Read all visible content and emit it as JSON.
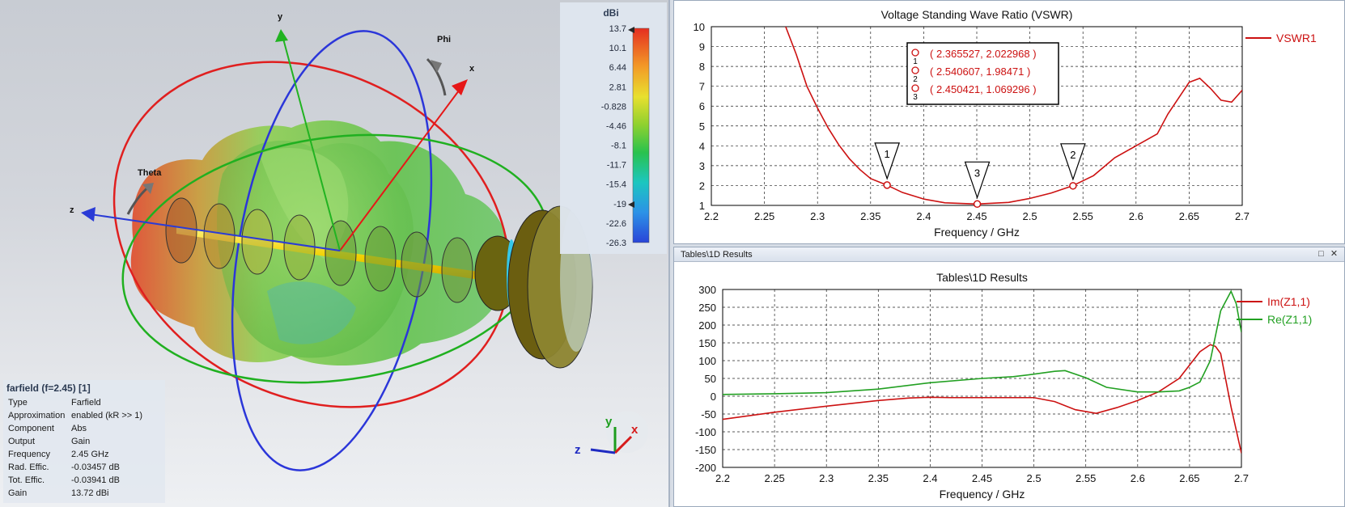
{
  "viewer": {
    "axis_labels": {
      "x": "x",
      "y": "y",
      "z": "z",
      "phi": "Phi",
      "theta": "Theta"
    },
    "triad": {
      "x": "x",
      "y": "y",
      "z": "z"
    },
    "colorbar": {
      "unit": "dBi",
      "ticks": [
        "13.7",
        "10.1",
        "6.44",
        "2.81",
        "-0.828",
        "-4.46",
        "-8.1",
        "-11.7",
        "-15.4",
        "-19",
        "-22.6",
        "-26.3"
      ]
    },
    "info": {
      "title": "farfield (f=2.45) [1]",
      "rows": [
        {
          "k": "Type",
          "v": "Farfield"
        },
        {
          "k": "Approximation",
          "v": "enabled (kR >> 1)"
        },
        {
          "k": "Component",
          "v": "Abs"
        },
        {
          "k": "Output",
          "v": "Gain"
        },
        {
          "k": "Frequency",
          "v": "2.45 GHz"
        },
        {
          "k": "Rad. Effic.",
          "v": "-0.03457 dB"
        },
        {
          "k": "Tot. Effic.",
          "v": "-0.03941 dB"
        },
        {
          "k": "Gain",
          "v": "13.72 dBi"
        }
      ]
    }
  },
  "chart_data": [
    {
      "type": "line",
      "title": "Voltage Standing Wave Ratio (VSWR)",
      "xlabel": "Frequency / GHz",
      "ylabel": "",
      "xlim": [
        2.2,
        2.7
      ],
      "ylim": [
        1,
        10
      ],
      "xticks": [
        "2.2",
        "2.25",
        "2.3",
        "2.35",
        "2.4",
        "2.45",
        "2.5",
        "2.55",
        "2.6",
        "2.65",
        "2.7"
      ],
      "yticks": [
        "1",
        "2",
        "3",
        "4",
        "5",
        "6",
        "7",
        "8",
        "9",
        "10"
      ],
      "grid": true,
      "legend_position": "right",
      "series": [
        {
          "name": "VSWR1",
          "color": "#cc1111",
          "x": [
            2.27,
            2.28,
            2.29,
            2.3,
            2.31,
            2.32,
            2.33,
            2.34,
            2.35,
            2.365,
            2.38,
            2.4,
            2.42,
            2.45,
            2.48,
            2.5,
            2.52,
            2.54,
            2.56,
            2.58,
            2.6,
            2.62,
            2.63,
            2.64,
            2.65,
            2.66,
            2.67,
            2.68,
            2.69,
            2.7
          ],
          "y": [
            10.0,
            8.6,
            7.0,
            5.9,
            4.9,
            4.05,
            3.35,
            2.8,
            2.35,
            2.03,
            1.65,
            1.32,
            1.13,
            1.07,
            1.15,
            1.35,
            1.62,
            1.98,
            2.5,
            3.4,
            4.0,
            4.6,
            5.6,
            6.4,
            7.2,
            7.4,
            6.9,
            6.3,
            6.2,
            6.8
          ]
        }
      ],
      "markers": [
        {
          "id": "1",
          "x": 2.365527,
          "y": 2.022968,
          "label": "( 2.365527, 2.022968 )"
        },
        {
          "id": "2",
          "x": 2.540607,
          "y": 1.98471,
          "label": "( 2.540607, 1.98471 )"
        },
        {
          "id": "3",
          "x": 2.450421,
          "y": 1.069296,
          "label": "( 2.450421, 1.069296 )"
        }
      ]
    },
    {
      "type": "line",
      "window_title": "Tables\\1D Results",
      "title": "Tables\\1D Results",
      "xlabel": "Frequency / GHz",
      "ylabel": "",
      "xlim": [
        2.2,
        2.7
      ],
      "ylim": [
        -200,
        300
      ],
      "xticks": [
        "2.2",
        "2.25",
        "2.3",
        "2.35",
        "2.4",
        "2.45",
        "2.5",
        "2.55",
        "2.6",
        "2.65",
        "2.7"
      ],
      "yticks": [
        "-200",
        "-150",
        "-100",
        "-50",
        "0",
        "50",
        "100",
        "150",
        "200",
        "250",
        "300"
      ],
      "grid": true,
      "legend_position": "right",
      "series": [
        {
          "name": "Im(Z1,1)",
          "color": "#cc1111",
          "x": [
            2.2,
            2.25,
            2.3,
            2.35,
            2.38,
            2.4,
            2.42,
            2.45,
            2.48,
            2.5,
            2.52,
            2.54,
            2.56,
            2.58,
            2.6,
            2.62,
            2.64,
            2.66,
            2.67,
            2.675,
            2.68,
            2.69,
            2.7
          ],
          "y": [
            -65,
            -45,
            -28,
            -12,
            -5,
            -3,
            -4,
            -4,
            -4,
            -4,
            -15,
            -38,
            -48,
            -32,
            -12,
            12,
            50,
            125,
            145,
            140,
            120,
            -30,
            -160
          ]
        },
        {
          "name": "Re(Z1,1)",
          "color": "#22a022",
          "x": [
            2.2,
            2.25,
            2.3,
            2.35,
            2.4,
            2.45,
            2.48,
            2.5,
            2.52,
            2.53,
            2.55,
            2.57,
            2.6,
            2.62,
            2.64,
            2.65,
            2.66,
            2.67,
            2.68,
            2.69,
            2.695,
            2.7
          ],
          "y": [
            5,
            7,
            10,
            20,
            38,
            50,
            55,
            62,
            70,
            72,
            52,
            25,
            12,
            12,
            15,
            25,
            40,
            100,
            240,
            295,
            260,
            180
          ]
        }
      ]
    }
  ]
}
